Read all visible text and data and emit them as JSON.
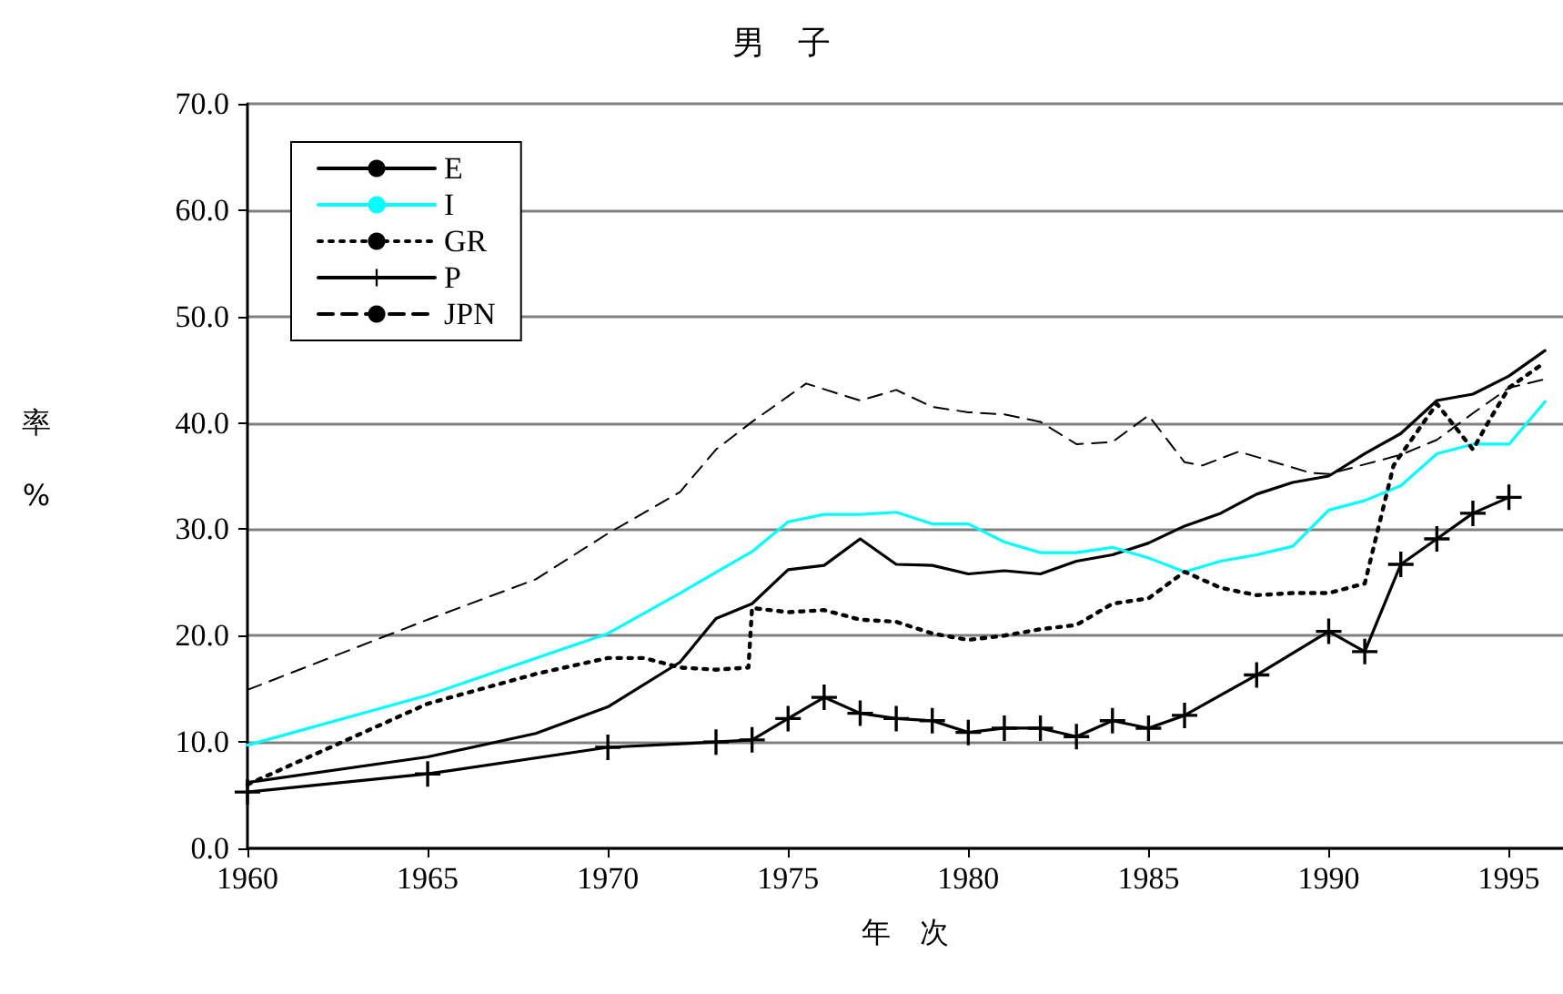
{
  "chart_data": {
    "type": "line",
    "title": "男　子",
    "xlabel": "年　次",
    "ylabel": "率\n\n%",
    "xlim": [
      1960,
      1996.5
    ],
    "xticks": [
      1960,
      1965,
      1970,
      1975,
      1980,
      1985,
      1990,
      1995
    ],
    "ylim": [
      0,
      70
    ],
    "yticks": [
      {
        "value": 0,
        "label": "0.0"
      },
      {
        "value": 10,
        "label": "10.0"
      },
      {
        "value": 20,
        "label": "20.0"
      },
      {
        "value": 30,
        "label": "30.0"
      },
      {
        "value": 40,
        "label": "40.0"
      },
      {
        "value": 50,
        "label": "50.0"
      },
      {
        "value": 60,
        "label": "60.0"
      },
      {
        "value": 70,
        "label": "70.0"
      }
    ],
    "grid": "y",
    "legend": "top left",
    "series": [
      {
        "name": "E",
        "color": "#000000",
        "line_style": "solid",
        "marker": "none",
        "x": [
          1960,
          1965,
          1968,
          1970,
          1972,
          1973,
          1974,
          1975,
          1976,
          1977,
          1978,
          1979,
          1980,
          1981,
          1982,
          1983,
          1984,
          1985,
          1986,
          1987,
          1988,
          1989,
          1990,
          1991,
          1992,
          1993,
          1994,
          1995,
          1996
        ],
        "values": [
          6.2,
          8.6,
          10.8,
          13.3,
          17.5,
          21.6,
          23.0,
          26.2,
          26.6,
          29.1,
          26.7,
          26.6,
          25.8,
          26.1,
          25.8,
          27.0,
          27.6,
          28.7,
          30.3,
          31.5,
          33.3,
          34.4,
          35.0,
          37.1,
          39.0,
          42.1,
          42.7,
          44.4,
          46.8
        ]
      },
      {
        "name": "I",
        "color": "#00ffff",
        "line_style": "solid",
        "marker": "none",
        "x": [
          1960,
          1965,
          1970,
          1972,
          1974,
          1975,
          1976,
          1977,
          1978,
          1979,
          1980,
          1981,
          1982,
          1983,
          1984,
          1985,
          1986,
          1987,
          1988,
          1989,
          1990,
          1991,
          1992,
          1993,
          1994,
          1995,
          1996
        ],
        "values": [
          9.7,
          14.4,
          20.2,
          24.0,
          27.9,
          30.7,
          31.4,
          31.4,
          31.6,
          30.5,
          30.5,
          28.8,
          27.8,
          27.8,
          28.3,
          27.3,
          26.0,
          27.0,
          27.6,
          28.4,
          31.8,
          32.7,
          34.1,
          37.1,
          38.0,
          38.0,
          42.0
        ]
      },
      {
        "name": "GR",
        "color": "#000000",
        "line_style": "dotted",
        "marker": "none",
        "x": [
          1960,
          1965,
          1968,
          1970,
          1971,
          1972,
          1973,
          1973.9,
          1974,
          1975,
          1976,
          1977,
          1978,
          1979,
          1980,
          1981,
          1982,
          1983,
          1984,
          1985,
          1986,
          1987,
          1988,
          1989,
          1990,
          1991,
          1991.8,
          1992,
          1993,
          1994,
          1994.5,
          1995,
          1996
        ],
        "values": [
          6.0,
          13.6,
          16.4,
          17.9,
          17.9,
          17.0,
          16.8,
          17.0,
          22.6,
          22.2,
          22.4,
          21.5,
          21.3,
          20.2,
          19.6,
          20.0,
          20.6,
          21.0,
          23.0,
          23.5,
          26.0,
          24.5,
          23.8,
          24.0,
          24.0,
          24.9,
          36.0,
          37.0,
          41.8,
          37.5,
          40.5,
          43.3,
          45.7
        ]
      },
      {
        "name": "P",
        "color": "#000000",
        "line_style": "solid",
        "marker": "cross",
        "x": [
          1960,
          1965,
          1970,
          1973,
          1974,
          1975,
          1976,
          1977,
          1978,
          1979,
          1980,
          1981,
          1982,
          1983,
          1984,
          1985,
          1986,
          1988,
          1990,
          1991,
          1992,
          1993,
          1994,
          1995
        ],
        "values": [
          5.3,
          7.0,
          9.5,
          10.0,
          10.2,
          12.2,
          14.2,
          12.7,
          12.2,
          12.0,
          10.9,
          11.3,
          11.3,
          10.5,
          12.0,
          11.3,
          12.5,
          16.3,
          20.4,
          18.5,
          26.7,
          29.1,
          31.5,
          33.0
        ]
      },
      {
        "name": "JPN",
        "color": "#000000",
        "line_style": "dashed",
        "marker": "none",
        "x": [
          1960,
          1965,
          1968,
          1970,
          1972,
          1973,
          1974,
          1975,
          1975.5,
          1977,
          1978,
          1979,
          1980,
          1981,
          1982,
          1983,
          1984,
          1985,
          1986,
          1986.5,
          1987.5,
          1989.5,
          1990,
          1991,
          1992,
          1993,
          1994,
          1995,
          1996
        ],
        "values": [
          14.9,
          21.5,
          25.3,
          29.6,
          33.5,
          37.5,
          40.1,
          42.5,
          43.7,
          42.1,
          43.1,
          41.5,
          41.0,
          40.8,
          40.1,
          38.0,
          38.2,
          40.7,
          36.3,
          36.0,
          37.3,
          35.3,
          35.2,
          36.1,
          37.0,
          38.4,
          40.9,
          43.3,
          44.1
        ]
      }
    ]
  }
}
